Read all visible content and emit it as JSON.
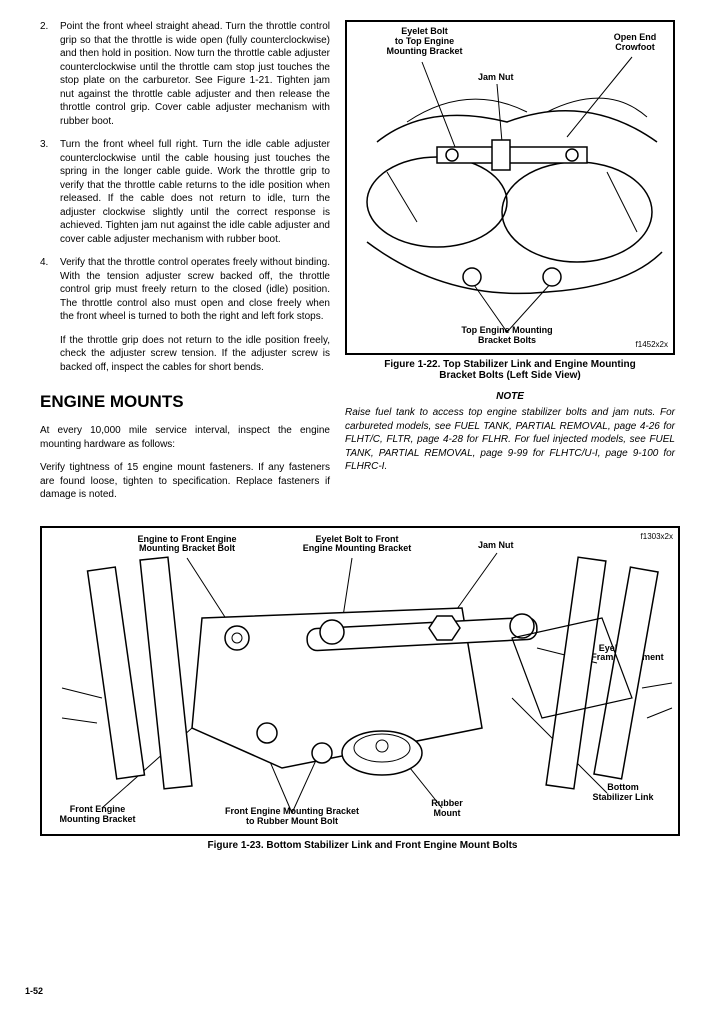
{
  "steps": [
    {
      "num": "2.",
      "text": "Point the front wheel straight ahead. Turn the throttle control grip so that the throttle is wide open (fully counterclockwise) and then hold in position. Now turn the throttle cable adjuster counterclockwise until the throttle cam stop just touches the stop plate on the carburetor. See Figure 1-21. Tighten jam nut against the throttle cable adjuster and then release the throttle control grip. Cover cable adjuster mechanism with rubber boot."
    },
    {
      "num": "3.",
      "text": "Turn the front wheel full right. Turn the idle cable adjuster counterclockwise until the cable housing just touches the spring in the longer cable guide. Work the throttle grip to verify that the throttle cable returns to the idle position when released. If the cable does not return to idle, turn the adjuster clockwise slightly until the correct response is achieved. Tighten jam nut against the idle cable adjuster and cover cable adjuster mechanism with rubber boot."
    },
    {
      "num": "4.",
      "text": "Verify that the throttle control operates freely without binding. With the tension adjuster screw backed off, the throttle control grip must freely return to the closed (idle) position. The throttle control also must open and close freely when the front wheel is turned to both the right and left fork stops."
    }
  ],
  "indent_para": "If the throttle grip does not return to the idle position freely, check the adjuster screw tension. If the adjuster screw is backed off, inspect the cables for short bends.",
  "section_heading": "ENGINE MOUNTS",
  "body1": "At every 10,000 mile service interval, inspect the engine mounting hardware as follows:",
  "body2": "Verify tightness of 15 engine mount fasteners. If any fasteners are found loose, tighten to specification. Replace fasteners if damage is noted.",
  "fig122": {
    "caption_l1": "Figure 1-22. Top Stabilizer Link and Engine Mounting",
    "caption_l2": "Bracket Bolts (Left Side View)",
    "labels": {
      "eyelet": "Eyelet Bolt\nto Top Engine\nMounting Bracket",
      "jam": "Jam Nut",
      "crowfoot": "Open End\nCrowfoot",
      "bottom": "Top Engine Mounting\nBracket Bolts"
    },
    "fignum": "f1452x2x"
  },
  "note_heading": "NOTE",
  "note_text": "Raise fuel tank to access top engine stabilizer bolts and jam nuts. For carbureted models, see FUEL TANK, PARTIAL REMOVAL, page 4-26 for FLHT/C, FLTR, page 4-28 for FLHR. For fuel injected models, see FUEL TANK, PARTIAL REMOVAL, page 9-99 for FLHTC/U-I, page 9-100 for FLHRC-I.",
  "fig123": {
    "caption": "Figure 1-23. Bottom Stabilizer Link and Front Engine Mount Bolts",
    "labels": {
      "engine_front": "Engine to Front Engine\nMounting Bracket Bolt",
      "eyelet_front": "Eyelet Bolt to Front\nEngine Mounting Bracket",
      "jam": "Jam Nut",
      "eyelet_frame": "Eyelet Bolt\nto Frame Weldment",
      "front_bracket": "Front Engine\nMounting Bracket",
      "front_rubber": "Front Engine Mounting Bracket\nto Rubber Mount Bolt",
      "rubber": "Rubber\nMount",
      "bottom_stab": "Bottom\nStabilizer Link"
    },
    "fignum": "f1303x2x"
  },
  "page_num": "1-52"
}
